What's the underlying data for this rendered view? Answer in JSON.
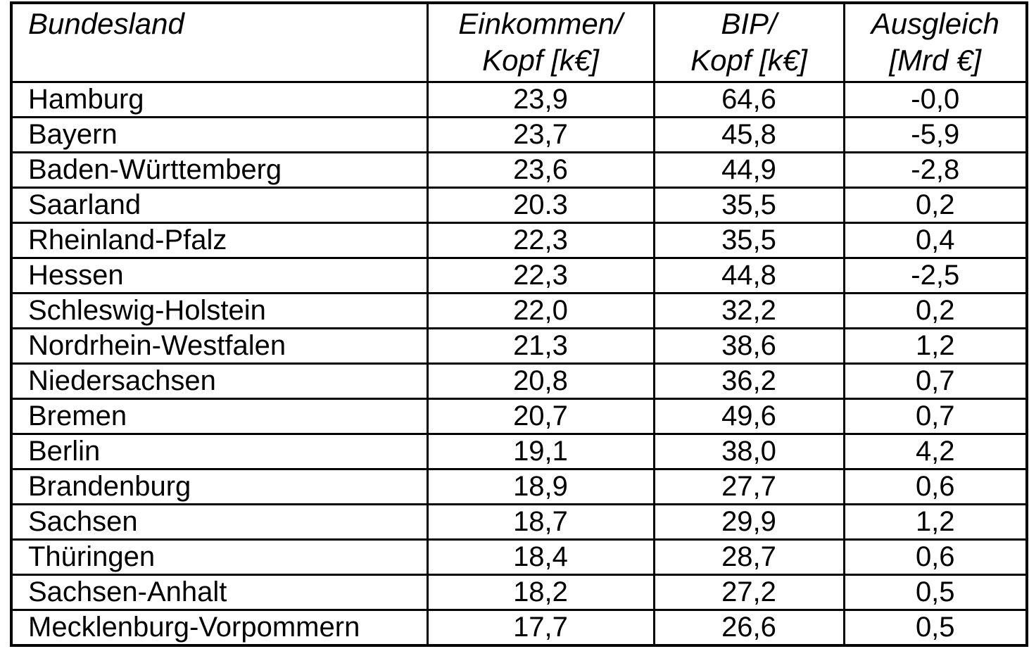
{
  "chart_data": {
    "type": "table",
    "title": "",
    "columns": [
      {
        "line1": "Bundesland",
        "line2": ""
      },
      {
        "line1": "Einkommen/",
        "line2": "Kopf [k€]"
      },
      {
        "line1": "BIP/",
        "line2": "Kopf [k€]"
      },
      {
        "line1": "Ausgleich",
        "line2": "[Mrd €]"
      }
    ],
    "rows": [
      {
        "bundesland": "Hamburg",
        "einkommen_kopf": "23,9",
        "bip_kopf": "64,6",
        "ausgleich": "-0,0"
      },
      {
        "bundesland": "Bayern",
        "einkommen_kopf": "23,7",
        "bip_kopf": "45,8",
        "ausgleich": "-5,9"
      },
      {
        "bundesland": "Baden-Württemberg",
        "einkommen_kopf": "23,6",
        "bip_kopf": "44,9",
        "ausgleich": "-2,8"
      },
      {
        "bundesland": "Saarland",
        "einkommen_kopf": "20.3",
        "bip_kopf": "35,5",
        "ausgleich": "0,2"
      },
      {
        "bundesland": "Rheinland-Pfalz",
        "einkommen_kopf": "22,3",
        "bip_kopf": "35,5",
        "ausgleich": "0,4"
      },
      {
        "bundesland": "Hessen",
        "einkommen_kopf": "22,3",
        "bip_kopf": "44,8",
        "ausgleich": "-2,5"
      },
      {
        "bundesland": "Schleswig-Holstein",
        "einkommen_kopf": "22,0",
        "bip_kopf": "32,2",
        "ausgleich": "0,2"
      },
      {
        "bundesland": "Nordrhein-Westfalen",
        "einkommen_kopf": "21,3",
        "bip_kopf": "38,6",
        "ausgleich": "1,2"
      },
      {
        "bundesland": "Niedersachsen",
        "einkommen_kopf": "20,8",
        "bip_kopf": "36,2",
        "ausgleich": "0,7"
      },
      {
        "bundesland": "Bremen",
        "einkommen_kopf": "20,7",
        "bip_kopf": "49,6",
        "ausgleich": "0,7"
      },
      {
        "bundesland": "Berlin",
        "einkommen_kopf": "19,1",
        "bip_kopf": "38,0",
        "ausgleich": "4,2"
      },
      {
        "bundesland": "Brandenburg",
        "einkommen_kopf": "18,9",
        "bip_kopf": "27,7",
        "ausgleich": "0,6"
      },
      {
        "bundesland": "Sachsen",
        "einkommen_kopf": "18,7",
        "bip_kopf": "29,9",
        "ausgleich": "1,2"
      },
      {
        "bundesland": "Thüringen",
        "einkommen_kopf": "18,4",
        "bip_kopf": "28,7",
        "ausgleich": "0,6"
      },
      {
        "bundesland": "Sachsen-Anhalt",
        "einkommen_kopf": "18,2",
        "bip_kopf": "27,2",
        "ausgleich": "0,5"
      },
      {
        "bundesland": "Mecklenburg-Vorpommern",
        "einkommen_kopf": "17,7",
        "bip_kopf": "26,6",
        "ausgleich": "0,5"
      }
    ]
  },
  "colors": {
    "border": "#000000",
    "background": "#ffffff",
    "text": "#000000"
  }
}
